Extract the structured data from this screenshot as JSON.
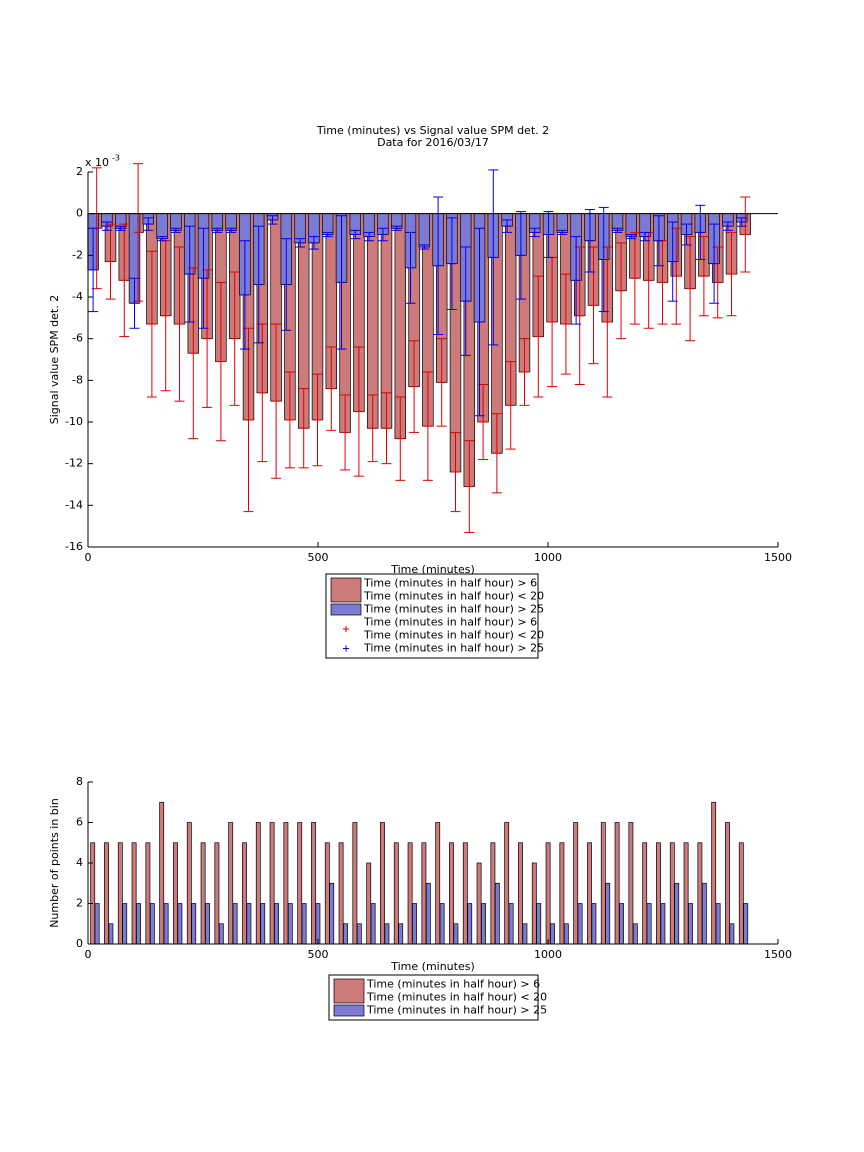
{
  "chart_data": [
    {
      "type": "bar",
      "title": "Time (minutes) vs Signal value SPM det. 2",
      "subtitle": "Data for 2016/03/17",
      "x_label": "Time (minutes)",
      "y_label": "Signal value SPM det. 2",
      "y_multiplier": "x 10",
      "y_exponent": "-3",
      "x": [
        15,
        45,
        75,
        105,
        135,
        165,
        195,
        225,
        255,
        285,
        315,
        345,
        375,
        405,
        435,
        465,
        495,
        525,
        555,
        585,
        615,
        645,
        675,
        705,
        735,
        765,
        795,
        825,
        855,
        885,
        915,
        945,
        975,
        1005,
        1035,
        1065,
        1095,
        1125,
        1155,
        1185,
        1215,
        1245,
        1275,
        1305,
        1335,
        1365,
        1395,
        1425
      ],
      "xlim": [
        0,
        1500
      ],
      "xticks": [
        0,
        500,
        1000,
        1500
      ],
      "ylim": [
        -16,
        2
      ],
      "yticks": [
        2,
        0,
        -2,
        -4,
        -6,
        -8,
        -10,
        -12,
        -14,
        -16
      ],
      "series": [
        {
          "name": [
            "Time (minutes in half hour) > 6",
            "Time (minutes in half hour) < 20"
          ],
          "color": "#cc7a7a",
          "error_color": "#e00000",
          "error_name": [
            "Time (minutes in half hour) > 6",
            "Time (minutes in half hour) < 20"
          ],
          "values": [
            -0.7,
            -2.3,
            -3.2,
            -0.9,
            -5.3,
            -4.9,
            -5.3,
            -6.7,
            -6.0,
            -7.1,
            -6.0,
            -9.9,
            -8.6,
            -9.0,
            -9.9,
            -10.3,
            -9.9,
            -8.4,
            -10.5,
            -9.5,
            -10.3,
            -10.3,
            -10.8,
            -8.3,
            -10.2,
            -8.1,
            -12.4,
            -13.1,
            -10.0,
            -11.5,
            -9.2,
            -7.6,
            -5.9,
            -5.2,
            -5.3,
            -4.9,
            -4.4,
            -5.2,
            -3.7,
            -3.1,
            -3.2,
            -3.3,
            -3.0,
            -3.6,
            -3.0,
            -3.3,
            -2.9,
            -1.0
          ],
          "errors": [
            2.9,
            1.8,
            2.7,
            3.3,
            3.5,
            3.6,
            3.7,
            4.1,
            3.3,
            3.8,
            3.2,
            4.4,
            3.3,
            3.7,
            2.3,
            1.9,
            2.2,
            2.0,
            1.8,
            3.1,
            1.6,
            1.7,
            2.0,
            2.2,
            2.6,
            2.1,
            1.9,
            2.2,
            1.8,
            1.9,
            2.1,
            1.6,
            2.9,
            3.1,
            2.4,
            3.3,
            2.8,
            3.6,
            2.3,
            2.2,
            2.3,
            2.0,
            2.3,
            2.5,
            1.9,
            1.7,
            2.0,
            1.8
          ]
        },
        {
          "name": [
            "Time (minutes in half hour) > 25"
          ],
          "color": "#7b7bd6",
          "error_color": "#0000ee",
          "error_name": [
            "Time (minutes in half hour) > 25"
          ],
          "values": [
            -2.7,
            -0.6,
            -0.7,
            -4.3,
            -0.5,
            -1.2,
            -0.8,
            -2.9,
            -3.1,
            -0.8,
            -0.8,
            -3.9,
            -3.4,
            -0.3,
            -3.4,
            -1.4,
            -1.4,
            -1.0,
            -3.3,
            -1.0,
            -1.1,
            -1.0,
            -0.7,
            -2.6,
            -1.6,
            -2.5,
            -2.4,
            -4.2,
            -5.2,
            -2.1,
            -0.6,
            -2.0,
            -0.9,
            -1.0,
            -0.9,
            -3.2,
            -1.3,
            -2.2,
            -0.8,
            -1.1,
            -1.1,
            -1.3,
            -2.3,
            -1.0,
            -0.9,
            -2.4,
            -0.6,
            -0.4
          ],
          "errors": [
            2.0,
            0.2,
            0.1,
            1.2,
            0.3,
            0.1,
            0.1,
            2.3,
            2.4,
            0.1,
            0.1,
            2.6,
            2.8,
            0.2,
            2.2,
            0.2,
            0.3,
            0.1,
            3.2,
            0.2,
            0.2,
            0.3,
            0.1,
            1.7,
            0.1,
            3.3,
            2.2,
            2.6,
            4.5,
            4.2,
            0.3,
            2.1,
            0.2,
            1.1,
            0.1,
            2.1,
            1.5,
            2.5,
            0.1,
            0.1,
            0.2,
            1.2,
            1.9,
            0.5,
            1.3,
            1.9,
            0.2,
            0.2
          ]
        }
      ]
    },
    {
      "type": "bar",
      "x_label": "Time (minutes)",
      "y_label": "Number of points in bin",
      "x": [
        15,
        45,
        75,
        105,
        135,
        165,
        195,
        225,
        255,
        285,
        315,
        345,
        375,
        405,
        435,
        465,
        495,
        525,
        555,
        585,
        615,
        645,
        675,
        705,
        735,
        765,
        795,
        825,
        855,
        885,
        915,
        945,
        975,
        1005,
        1035,
        1065,
        1095,
        1125,
        1155,
        1185,
        1215,
        1245,
        1275,
        1305,
        1335,
        1365,
        1395,
        1425
      ],
      "xlim": [
        0,
        1500
      ],
      "xticks": [
        0,
        500,
        1000,
        1500
      ],
      "ylim": [
        0,
        8
      ],
      "yticks": [
        0,
        2,
        4,
        6,
        8
      ],
      "series": [
        {
          "name": [
            "Time (minutes in half hour) > 6",
            "Time (minutes in half hour) < 20"
          ],
          "color": "#cc7a7a",
          "values": [
            5,
            5,
            5,
            5,
            5,
            7,
            5,
            6,
            5,
            5,
            6,
            5,
            6,
            6,
            6,
            6,
            6,
            5,
            5,
            6,
            4,
            6,
            5,
            5,
            5,
            6,
            5,
            5,
            4,
            5,
            6,
            5,
            4,
            5,
            5,
            6,
            5,
            6,
            6,
            6,
            5,
            5,
            5,
            5,
            5,
            7,
            6,
            5
          ]
        },
        {
          "name": [
            "Time (minutes in half hour) > 25"
          ],
          "color": "#7b7bd6",
          "values": [
            2,
            1,
            2,
            2,
            2,
            2,
            2,
            2,
            2,
            1,
            2,
            2,
            2,
            2,
            2,
            2,
            2,
            3,
            1,
            1,
            2,
            1,
            1,
            2,
            3,
            2,
            1,
            2,
            2,
            3,
            2,
            1,
            2,
            1,
            1,
            2,
            2,
            3,
            2,
            1,
            2,
            2,
            3,
            2,
            3,
            2,
            1,
            2
          ]
        }
      ]
    }
  ]
}
